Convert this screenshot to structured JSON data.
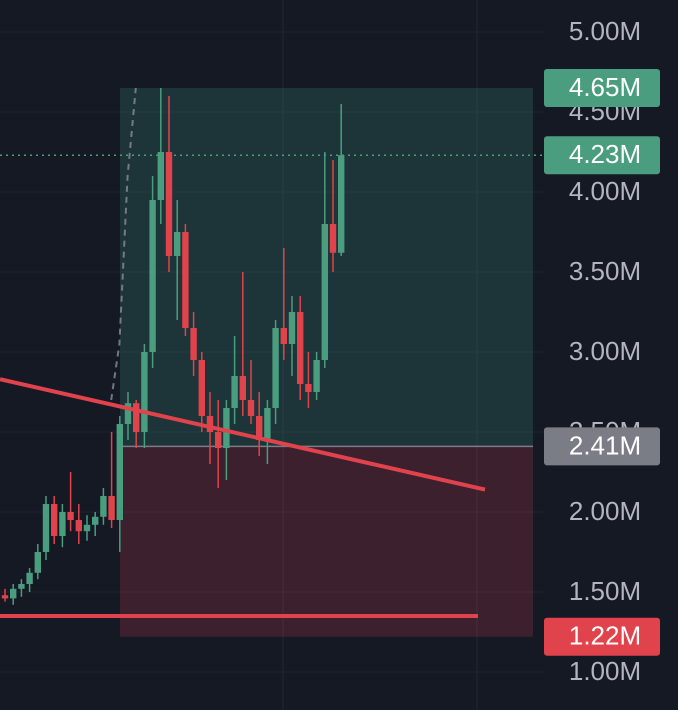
{
  "chart_data": {
    "type": "candlestick",
    "open": [
      1.48,
      1.46,
      1.52,
      1.55,
      1.62,
      1.75,
      2.05,
      1.85,
      2.0,
      1.95,
      1.88,
      1.92,
      1.97,
      2.1,
      1.95,
      2.55,
      2.68,
      2.5,
      3.0,
      3.95,
      4.25,
      3.6,
      3.75,
      3.15,
      2.95,
      2.6,
      2.5,
      2.4,
      2.65,
      2.85,
      2.7,
      2.6,
      2.45,
      2.65,
      3.15,
      3.05,
      3.25,
      2.8,
      2.75,
      2.95,
      3.8,
      3.62
    ],
    "high": [
      1.52,
      1.55,
      1.58,
      1.65,
      1.8,
      2.1,
      2.1,
      2.05,
      2.25,
      2.05,
      1.98,
      2.0,
      2.15,
      2.5,
      2.6,
      2.75,
      2.7,
      3.05,
      4.1,
      4.65,
      4.6,
      3.95,
      3.8,
      3.25,
      3.0,
      2.75,
      2.7,
      2.7,
      3.1,
      3.5,
      2.95,
      2.75,
      2.7,
      3.2,
      3.65,
      3.35,
      3.35,
      3.0,
      3.0,
      4.25,
      4.2,
      4.55
    ],
    "low": [
      1.44,
      1.42,
      1.47,
      1.5,
      1.58,
      1.7,
      1.8,
      1.78,
      1.88,
      1.8,
      1.82,
      1.85,
      1.92,
      1.9,
      1.75,
      2.45,
      2.4,
      2.4,
      2.9,
      3.8,
      3.5,
      3.2,
      3.1,
      2.85,
      2.5,
      2.3,
      2.15,
      2.2,
      2.55,
      2.6,
      2.55,
      2.35,
      2.3,
      2.55,
      2.95,
      2.85,
      2.7,
      2.65,
      2.7,
      2.9,
      3.5,
      3.6
    ],
    "close": [
      1.46,
      1.52,
      1.55,
      1.62,
      1.75,
      2.05,
      1.85,
      2.0,
      1.95,
      1.88,
      1.92,
      1.97,
      2.1,
      1.95,
      2.55,
      2.68,
      2.5,
      3.0,
      3.95,
      4.25,
      3.6,
      3.75,
      3.15,
      2.95,
      2.6,
      2.5,
      2.4,
      2.65,
      2.85,
      2.7,
      2.6,
      2.45,
      2.65,
      3.15,
      3.05,
      3.25,
      2.8,
      2.75,
      2.95,
      3.8,
      3.62,
      4.23
    ],
    "up_color": "#4a9d7f",
    "down_color": "#e0434c",
    "ylim": [
      0.7625,
      5.2
    ],
    "yticks": [
      {
        "value": 1,
        "label": "1.00M"
      },
      {
        "value": 1.5,
        "label": "1.50M"
      },
      {
        "value": 2,
        "label": "2.00M"
      },
      {
        "value": 2.5,
        "label": "2.50M"
      },
      {
        "value": 3,
        "label": "3.00M"
      },
      {
        "value": 3.5,
        "label": "3.50M"
      },
      {
        "value": 4,
        "label": "4.00M"
      },
      {
        "value": 4.5,
        "label": "4.50M"
      },
      {
        "value": 5,
        "label": "5.00M"
      }
    ],
    "price_labels": [
      {
        "value": 4.65,
        "label": "4.65M",
        "color": "#4a9d7f"
      },
      {
        "value": 4.23,
        "label": "4.23M",
        "color": "#4a9d7f"
      },
      {
        "value": 2.41,
        "label": "2.41M",
        "color": "#7a7d86"
      },
      {
        "value": 1.22,
        "label": "1.22M",
        "color": "#e0434c"
      }
    ],
    "trend_line": [
      2.83,
      2.14
    ],
    "horizontal_line": 1.35,
    "grid": true
  }
}
